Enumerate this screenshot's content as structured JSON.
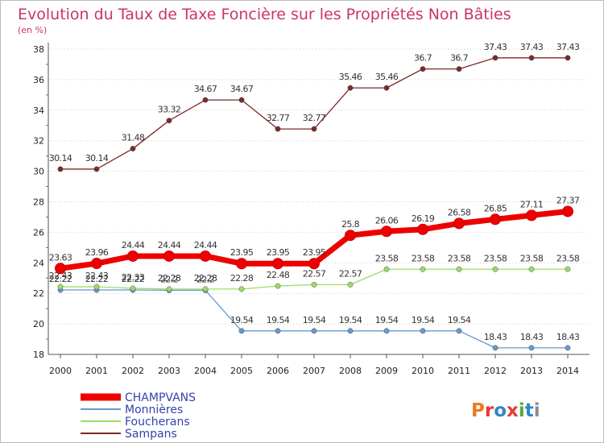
{
  "title": "Evolution du Taux de Taxe Foncière sur les Propriétés Non Bâties",
  "subtitle": "(en %)",
  "logo": {
    "text": "Proxiti",
    "letters": [
      "P",
      "r",
      "o",
      "x",
      "i",
      "t",
      "i"
    ],
    "colors": [
      "#ef7b1a",
      "#e53a2f",
      "#2f86c9",
      "#e53a2f",
      "#5aaa36",
      "#2f86c9",
      "#8c8c8c"
    ]
  },
  "chart_data": {
    "type": "line",
    "title": "Evolution du Taux de Taxe Foncière sur les Propriétés Non Bâties",
    "subtitle": "(en %)",
    "xlabel": "",
    "ylabel": "",
    "x": [
      "2000",
      "2001",
      "2002",
      "2003",
      "2004",
      "2005",
      "2006",
      "2007",
      "2008",
      "2009",
      "2010",
      "2011",
      "2012",
      "2013",
      "2014"
    ],
    "yticks": [
      "18",
      "20",
      "22",
      "24",
      "26",
      "28",
      "30",
      "32",
      "34",
      "36",
      "38"
    ],
    "ylim": [
      18,
      38
    ],
    "grid": "horizontal dotted",
    "legend_position": "bottom-left",
    "series": [
      {
        "name": "CHAMPVANS",
        "color": "#ee0000",
        "values": [
          23.63,
          23.96,
          24.44,
          24.44,
          24.44,
          23.95,
          23.95,
          23.95,
          25.8,
          26.06,
          26.19,
          26.58,
          26.85,
          27.11,
          27.37
        ],
        "labels": [
          "23.63",
          "23.96",
          "24.44",
          "24.44",
          "24.44",
          "23.95",
          "23.95",
          "23.95",
          "25.8",
          "26.06",
          "26.19",
          "26.58",
          "26.85",
          "27.11",
          "27.37"
        ]
      },
      {
        "name": "Monnières",
        "color": "#6699cc",
        "values": [
          22.22,
          22.22,
          22.22,
          22.2,
          22.2,
          19.54,
          19.54,
          19.54,
          19.54,
          19.54,
          19.54,
          19.54,
          18.43,
          18.43,
          18.43
        ],
        "labels": [
          "22.22",
          "22.22",
          "22.22",
          "22.2",
          "22.2",
          "19.54",
          "19.54",
          "19.54",
          "19.54",
          "19.54",
          "19.54",
          "19.54",
          "18.43",
          "18.43",
          "18.43"
        ]
      },
      {
        "name": "Foucherans",
        "color": "#99dd66",
        "values": [
          22.43,
          22.43,
          22.33,
          22.28,
          22.28,
          22.28,
          22.48,
          22.57,
          22.57,
          23.58,
          23.58,
          23.58,
          23.58,
          23.58,
          23.58
        ],
        "labels": [
          "22.43",
          "22.43",
          "22.33",
          "22.28",
          "22.28",
          "22.28",
          "22.48",
          "22.57",
          "22.57",
          "23.58",
          "23.58",
          "23.58",
          "23.58",
          "23.58",
          "23.58"
        ]
      },
      {
        "name": "Sampans",
        "color": "#7a2a2a",
        "values": [
          30.14,
          30.14,
          31.48,
          33.32,
          34.67,
          34.67,
          32.77,
          32.77,
          35.46,
          35.46,
          36.7,
          36.7,
          37.43,
          37.43,
          37.43
        ],
        "labels": [
          "30.14",
          "30.14",
          "31.48",
          "33.32",
          "34.67",
          "34.67",
          "32.77",
          "32.77",
          "35.46",
          "35.46",
          "36.7",
          "36.7",
          "37.43",
          "37.43",
          "37.43"
        ]
      }
    ]
  }
}
